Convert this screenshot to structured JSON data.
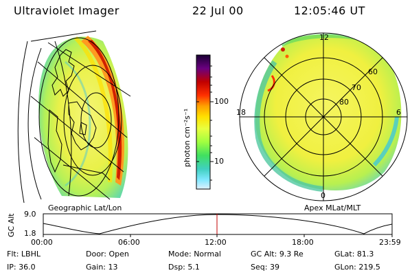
{
  "header": {
    "instrument": "Ultraviolet Imager",
    "date": "22 Jul 00",
    "time": "12:05:46 UT"
  },
  "panels": {
    "left_label": "Geographic Lat/Lon",
    "right_label": "Apex MLat/MLT"
  },
  "colorbar": {
    "unit_label": "photon cm⁻²s⁻¹",
    "ticks": [
      "100",
      "10"
    ],
    "scale": "log",
    "colors": [
      "#1a0033",
      "#6a0080",
      "#c00000",
      "#ff3000",
      "#ffa000",
      "#ffe000",
      "#e8ff40",
      "#a0ff40",
      "#40e060",
      "#40d0c0",
      "#80e8ff",
      "#e0f0ff"
    ]
  },
  "polar_plot": {
    "mlt_labels": {
      "top": "12",
      "left": "18",
      "right": "6",
      "bottom": "0"
    },
    "lat_labels": [
      "60",
      "70",
      "80"
    ]
  },
  "altitude_plot": {
    "y_axis_title": "GC Alt",
    "y_ticks": [
      "9.0",
      "1.8"
    ],
    "x_ticks": [
      "00:00",
      "06:00",
      "12:00",
      "18:00",
      "23:59"
    ]
  },
  "info": {
    "row1": [
      {
        "key": "Flt:",
        "val": "LBHL"
      },
      {
        "key": "Door:",
        "val": "Open"
      },
      {
        "key": "Mode:",
        "val": "Normal"
      },
      {
        "key": "GC Alt:",
        "val": "9.3 Re"
      },
      {
        "key": "GLat:",
        "val": "81.3"
      }
    ],
    "row2": [
      {
        "key": "IP:",
        "val": "36.0"
      },
      {
        "key": "Gain:",
        "val": "13"
      },
      {
        "key": "Dsp:",
        "val": "5.1"
      },
      {
        "key": "Seq:",
        "val": "39"
      },
      {
        "key": "GLon:",
        "val": "219.5"
      }
    ]
  }
}
